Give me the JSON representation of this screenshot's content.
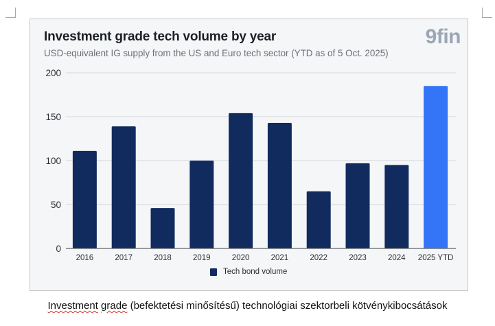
{
  "caption": {
    "misspelled_words": [
      "Investment",
      "grade"
    ],
    "rest": " (befektetési minősítésű) technológiai szektorbeli kötvénykibocsátások"
  },
  "logo": "9fin",
  "colors": {
    "bar": "#112b5e",
    "highlight_bar": "#3375f6",
    "grid": "#dadde1",
    "axis": "#5f6368",
    "background": "#f4f6f8"
  },
  "chart_data": {
    "type": "bar",
    "title": "Investment grade tech volume by year",
    "subtitle": "USD-equivalent IG supply from the US and Euro tech sector (YTD as of 5 Oct. 2025)",
    "xlabel": "",
    "ylabel": "",
    "categories": [
      "2016",
      "2017",
      "2018",
      "2019",
      "2020",
      "2021",
      "2022",
      "2023",
      "2024",
      "2025 YTD"
    ],
    "series": [
      {
        "name": "Tech bond volume",
        "values": [
          111,
          139,
          46,
          100,
          154,
          143,
          65,
          97,
          95,
          185
        ]
      }
    ],
    "highlight_index": 9,
    "ylim": [
      0,
      200
    ],
    "yticks": [
      0,
      50,
      100,
      150,
      200
    ],
    "grid": true,
    "legend": {
      "position": "bottom-center",
      "entries": [
        "Tech bond volume"
      ]
    }
  }
}
